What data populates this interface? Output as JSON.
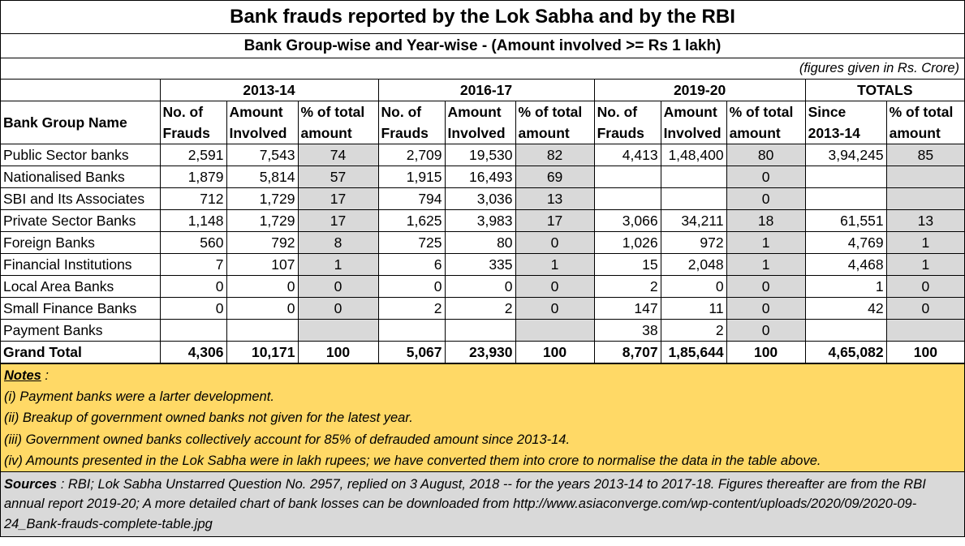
{
  "title": "Bank frauds reported by the Lok Sabha and by the RBI",
  "subtitle": "Bank Group-wise and Year-wise - (Amount involved >= Rs 1 lakh)",
  "figures_note": "(figures given in Rs. Crore)",
  "table": {
    "groups": [
      "2013-14",
      "2016-17",
      "2019-20",
      "TOTALS"
    ],
    "name_header": "Bank Group Name",
    "col_headers": {
      "frauds": "No. of Frauds",
      "amount": "Amount Involved",
      "pct": "% of total amount",
      "since": "Since 2013-14"
    },
    "rows": [
      {
        "name": "Public Sector banks",
        "c": [
          "2,591",
          "7,543",
          "74",
          "2,709",
          "19,530",
          "82",
          "4,413",
          "1,48,400",
          "80",
          "3,94,245",
          "85"
        ]
      },
      {
        "name": "Nationalised Banks",
        "c": [
          "1,879",
          "5,814",
          "57",
          "1,915",
          "16,493",
          "69",
          "",
          "",
          "0",
          "",
          ""
        ]
      },
      {
        "name": "SBI and Its Associates",
        "c": [
          "712",
          "1,729",
          "17",
          "794",
          "3,036",
          "13",
          "",
          "",
          "0",
          "",
          ""
        ]
      },
      {
        "name": "Private Sector Banks",
        "c": [
          "1,148",
          "1,729",
          "17",
          "1,625",
          "3,983",
          "17",
          "3,066",
          "34,211",
          "18",
          "61,551",
          "13"
        ]
      },
      {
        "name": "Foreign Banks",
        "c": [
          "560",
          "792",
          "8",
          "725",
          "80",
          "0",
          "1,026",
          "972",
          "1",
          "4,769",
          "1"
        ]
      },
      {
        "name": "Financial Institutions",
        "c": [
          "7",
          "107",
          "1",
          "6",
          "335",
          "1",
          "15",
          "2,048",
          "1",
          "4,468",
          "1"
        ]
      },
      {
        "name": "Local Area Banks",
        "c": [
          "0",
          "0",
          "0",
          "0",
          "0",
          "0",
          "2",
          "0",
          "0",
          "1",
          "0"
        ]
      },
      {
        "name": "Small Finance Banks",
        "c": [
          "0",
          "0",
          "0",
          "2",
          "2",
          "0",
          "147",
          "11",
          "0",
          "42",
          "0"
        ]
      },
      {
        "name": "Payment Banks",
        "c": [
          "",
          "",
          "",
          "",
          "",
          "",
          "38",
          "2",
          "0",
          "",
          ""
        ]
      }
    ],
    "grand_total": {
      "name": "Grand Total",
      "c": [
        "4,306",
        "10,171",
        "100",
        "5,067",
        "23,930",
        "100",
        "8,707",
        "1,85,644",
        "100",
        "4,65,082",
        "100"
      ]
    }
  },
  "notes": {
    "heading": "Notes",
    "heading_suffix": " :",
    "items": [
      "(i) Payment banks were a larter development.",
      "(ii) Breakup of government owned banks not given for the latest year.",
      "(iii) Government owned banks collectively account for 85% of defrauded amount since 2013-14.",
      "(iv) Amounts presented in the Lok Sabha were in lakh rupees; we have converted them into crore to normalise the data in the table above."
    ]
  },
  "sources": {
    "label": "Sources",
    "text": " : RBI; Lok Sabha Unstarred Question No. 2957, replied on 3 August, 2018  -- for the years  2013-14 to 2017-18.  Figures thereafter are from the RBI annual report 2019-20; A more detailed chart of bank losses can be downloaded from  http://www.asiaconverge.com/wp-content/uploads/2020/09/2020-09-24_Bank-frauds-complete-table.jpg"
  }
}
